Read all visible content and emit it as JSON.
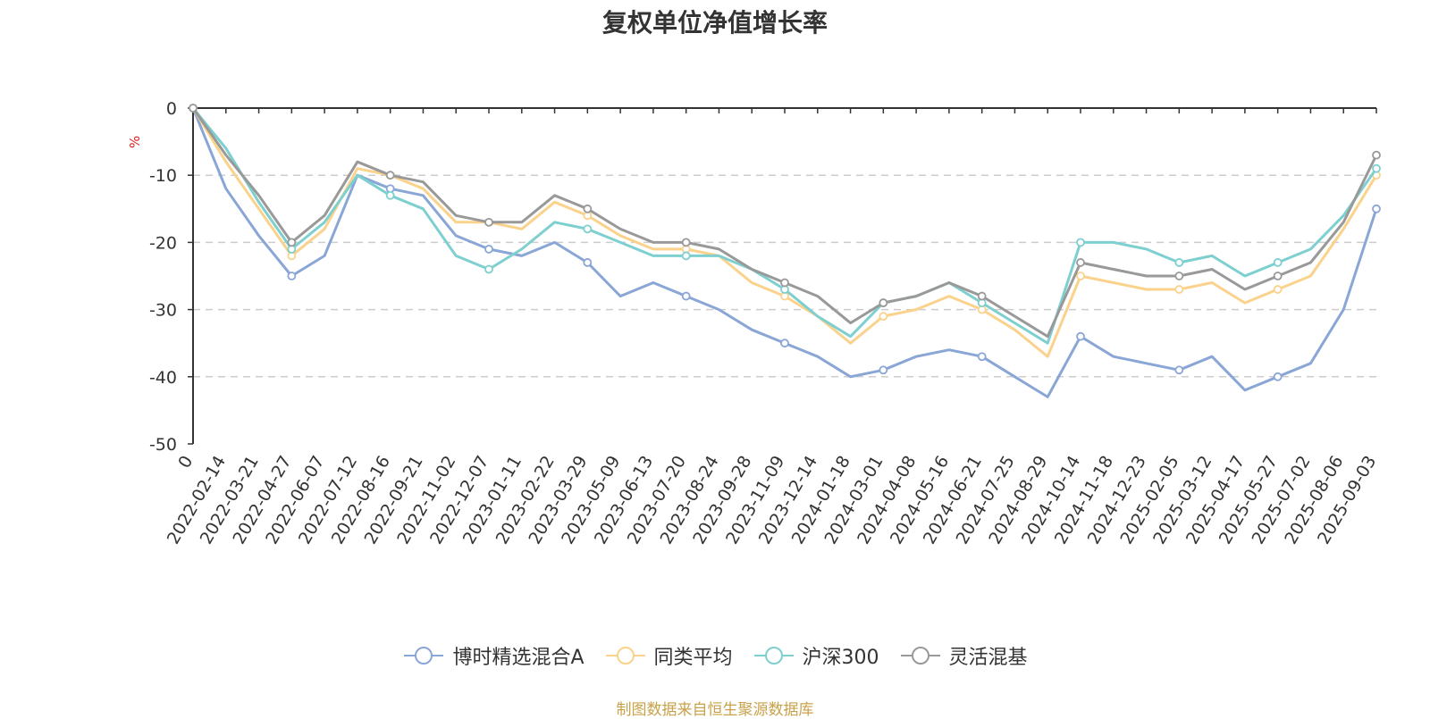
{
  "chart_data": {
    "type": "line",
    "title": "复权单位净值增长率",
    "ylabel": "%",
    "ylim": [
      -50,
      0
    ],
    "yticks": [
      0,
      -10,
      -20,
      -30,
      -40,
      -50
    ],
    "grid": true,
    "legend_position": "bottom",
    "x_tick_labels": [
      "0",
      "2022-02-14",
      "2022-03-21",
      "2022-04-27",
      "2022-06-07",
      "2022-07-12",
      "2022-08-16",
      "2022-09-21",
      "2022-11-02",
      "2022-12-07",
      "2023-01-11",
      "2023-02-22",
      "2023-03-29",
      "2023-05-09",
      "2023-06-13",
      "2023-07-20",
      "2023-08-24",
      "2023-09-28",
      "2023-11-09",
      "2023-12-14",
      "2024-01-18",
      "2024-03-01",
      "2024-04-08",
      "2024-05-16",
      "2024-06-21",
      "2024-07-25",
      "2024-08-29",
      "2024-10-14",
      "2024-11-18",
      "2024-12-23",
      "2025-02-05",
      "2025-03-12",
      "2025-04-17",
      "2025-05-27",
      "2025-07-02",
      "2025-08-06",
      "2025-09-03"
    ],
    "series": [
      {
        "name": "博时精选混合A",
        "color": "#8aa6d6",
        "values": [
          0,
          -12,
          -19,
          -25,
          -22,
          -10,
          -12,
          -13,
          -19,
          -21,
          -22,
          -20,
          -23,
          -28,
          -26,
          -28,
          -30,
          -33,
          -35,
          -37,
          -40,
          -39,
          -37,
          -36,
          -37,
          -40,
          -43,
          -34,
          -37,
          -38,
          -39,
          -37,
          -42,
          -40,
          -38,
          -30,
          -15
        ]
      },
      {
        "name": "同类平均",
        "color": "#fad28c",
        "values": [
          0,
          -8,
          -15,
          -22,
          -18,
          -9,
          -10,
          -12,
          -17,
          -17,
          -18,
          -14,
          -16,
          -19,
          -21,
          -21,
          -22,
          -26,
          -28,
          -31,
          -35,
          -31,
          -30,
          -28,
          -30,
          -33,
          -37,
          -25,
          -26,
          -27,
          -27,
          -26,
          -29,
          -27,
          -25,
          -18,
          -10
        ]
      },
      {
        "name": "沪深300",
        "color": "#7ecfd0",
        "values": [
          0,
          -6,
          -14,
          -21,
          -17,
          -10,
          -13,
          -15,
          -22,
          -24,
          -21,
          -17,
          -18,
          -20,
          -22,
          -22,
          -22,
          -24,
          -27,
          -31,
          -34,
          -29,
          -28,
          -26,
          -29,
          -32,
          -35,
          -20,
          -20,
          -21,
          -23,
          -22,
          -25,
          -23,
          -21,
          -16,
          -9
        ]
      },
      {
        "name": "灵活混基",
        "color": "#999999",
        "values": [
          0,
          -7,
          -13,
          -20,
          -16,
          -8,
          -10,
          -11,
          -16,
          -17,
          -17,
          -13,
          -15,
          -18,
          -20,
          -20,
          -21,
          -24,
          -26,
          -28,
          -32,
          -29,
          -28,
          -26,
          -28,
          -31,
          -34,
          -23,
          -24,
          -25,
          -25,
          -24,
          -27,
          -25,
          -23,
          -17,
          -7
        ]
      }
    ]
  },
  "footer": {
    "source": "制图数据来自恒生聚源数据库"
  },
  "colors": {
    "ylabel": "#e02020",
    "grid": "#cccccc",
    "axis": "#333333"
  }
}
